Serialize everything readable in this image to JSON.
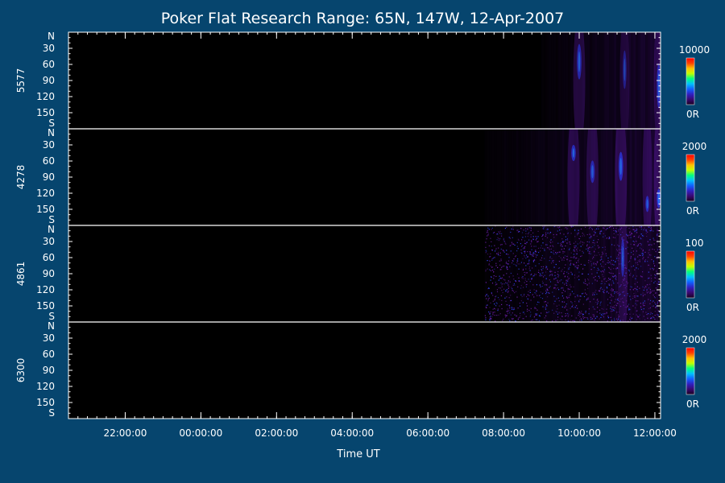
{
  "chart_data": {
    "type": "heatmap",
    "title": "Poker Flat Research Range: 65N, 147W, 12-Apr-2007",
    "xlabel": "Time UT",
    "x_ticks": [
      "22:00:00",
      "00:00:00",
      "02:00:00",
      "04:00:00",
      "06:00:00",
      "08:00:00",
      "10:00:00",
      "12:00:00"
    ],
    "x_tick_hours": [
      22,
      24,
      26,
      28,
      30,
      32,
      34,
      36
    ],
    "x_range_hours": [
      20.5,
      36.15
    ],
    "y_ticks": [
      "N",
      "30",
      "60",
      "90",
      "120",
      "150",
      "S"
    ],
    "y_tick_values": [
      0,
      30,
      60,
      90,
      120,
      150,
      180
    ],
    "y_range": [
      0,
      180
    ],
    "panels": [
      {
        "label": "5577",
        "scale_max": "10000",
        "scale_min": "0R",
        "data_start_hour": 33.0,
        "arcs": [
          {
            "t": 34.0,
            "width": 0.1,
            "intensity": 0.55,
            "y_center": 55,
            "y_spread": 55
          },
          {
            "t": 35.2,
            "width": 0.08,
            "intensity": 0.4,
            "y_center": 70,
            "y_spread": 60
          },
          {
            "t": 36.1,
            "width": 0.08,
            "intensity": 0.6,
            "y_center": 100,
            "y_spread": 70
          }
        ]
      },
      {
        "label": "4278",
        "scale_max": "2000",
        "scale_min": "0R",
        "data_start_hour": 31.5,
        "arcs": [
          {
            "t": 33.85,
            "width": 0.1,
            "intensity": 0.6,
            "y_center": 45,
            "y_spread": 25
          },
          {
            "t": 34.35,
            "width": 0.1,
            "intensity": 0.55,
            "y_center": 80,
            "y_spread": 35
          },
          {
            "t": 35.1,
            "width": 0.1,
            "intensity": 0.65,
            "y_center": 70,
            "y_spread": 45
          },
          {
            "t": 35.8,
            "width": 0.08,
            "intensity": 0.6,
            "y_center": 140,
            "y_spread": 25
          },
          {
            "t": 36.1,
            "width": 0.08,
            "intensity": 0.75,
            "y_center": 130,
            "y_spread": 30
          }
        ]
      },
      {
        "label": "4861",
        "scale_max": "100",
        "scale_min": "0R",
        "data_start_hour": 31.5,
        "noise": true,
        "arcs": [
          {
            "t": 35.15,
            "width": 0.08,
            "intensity": 0.5,
            "y_center": 60,
            "y_spread": 60
          }
        ]
      },
      {
        "label": "6300",
        "scale_max": "2000",
        "scale_min": "0R",
        "data_start_hour": null,
        "arcs": []
      }
    ],
    "colormap": [
      "#1a0020",
      "#3a0870",
      "#3020c0",
      "#1060ff",
      "#00c0ff",
      "#00ff80",
      "#c0ff00",
      "#ffc000",
      "#ff4000",
      "#ff0000"
    ],
    "grid": false,
    "legend": "right"
  }
}
